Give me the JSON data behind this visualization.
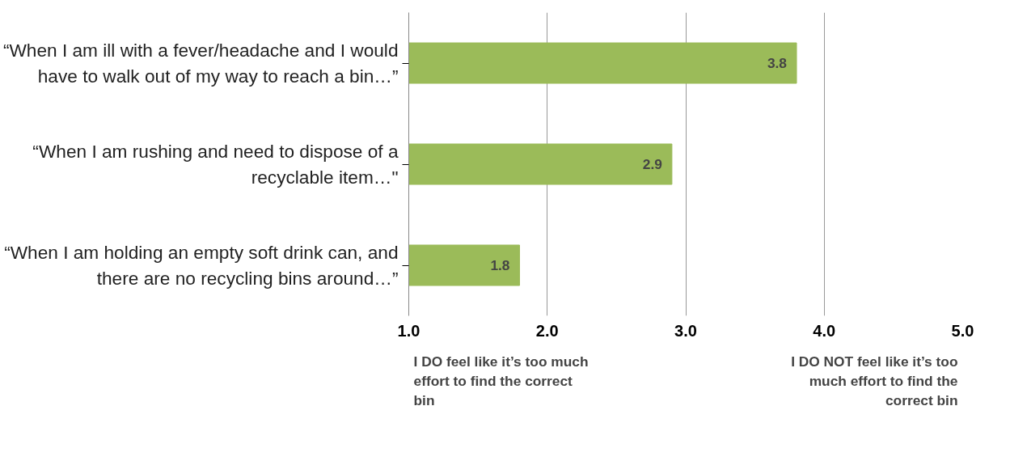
{
  "chart_data": {
    "type": "bar",
    "orientation": "horizontal",
    "categories": [
      "“When I am ill with a fever/headache and I would have to walk out of my way to reach a bin…”",
      "“When I am rushing and need to dispose of a recyclable item…\"",
      "“When I am holding an empty soft drink can, and there are no recycling bins around…”"
    ],
    "values": [
      3.8,
      2.9,
      1.8
    ],
    "color": "#9bbb59",
    "data_labels": true,
    "xlim": [
      1,
      5
    ],
    "xticks": [
      {
        "value": 1,
        "label": "1.0"
      },
      {
        "value": 2,
        "label": "2.0"
      },
      {
        "value": 3,
        "label": "3.0"
      },
      {
        "value": 4,
        "label": "4.0"
      },
      {
        "value": 5,
        "label": "5.0"
      }
    ],
    "grid": "x",
    "annotations": [
      "I DO feel like it’s too much effort to find the correct bin",
      "I DO NOT feel like it’s too much effort to find the correct bin"
    ]
  }
}
